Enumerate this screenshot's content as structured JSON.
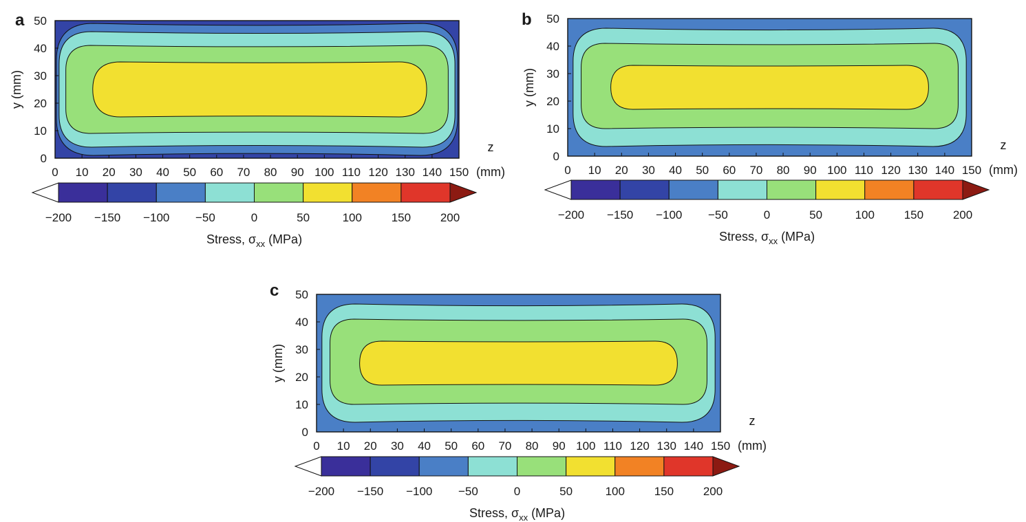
{
  "chart_data": [
    {
      "panel_label": "a",
      "type": "contour",
      "xlabel": "z",
      "xunit": "(mm)",
      "ylabel": "y (mm)",
      "xlim": [
        0,
        150
      ],
      "ylim": [
        0,
        50
      ],
      "xticks": [
        "0",
        "10",
        "20",
        "30",
        "40",
        "50",
        "60",
        "70",
        "80",
        "90",
        "100",
        "110",
        "120",
        "130",
        "140",
        "150"
      ],
      "yticks": [
        "0",
        "10",
        "20",
        "30",
        "40",
        "50"
      ],
      "contour_regions": [
        {
          "band": "-150 to -100",
          "color": "#3344a6",
          "x": [
            0,
            150
          ],
          "y": [
            0,
            50
          ]
        },
        {
          "band": "-100 to -50",
          "color": "#4a7fc6",
          "x": [
            0.5,
            149.5
          ],
          "y": [
            1,
            49
          ]
        },
        {
          "band": "-50 to 0",
          "color": "#8de0d4",
          "x": [
            1.5,
            148.5
          ],
          "y": [
            4,
            46
          ]
        },
        {
          "band": "0 to 50",
          "color": "#98e07a",
          "x": [
            4,
            146
          ],
          "y": [
            9,
            41
          ]
        },
        {
          "band": "50 to 100",
          "color": "#f2e030",
          "x": [
            14,
            138
          ],
          "y": [
            15,
            35
          ]
        }
      ],
      "colorbar": {
        "label_prefix": "Stress, σ",
        "label_sub": "xx",
        "label_suffix": " (MPa)",
        "ticks": [
          "−200",
          "−150",
          "−100",
          "−50",
          "0",
          "50",
          "100",
          "150",
          "200"
        ],
        "colors": [
          "#3a2f9a",
          "#3344a6",
          "#4a7fc6",
          "#8de0d4",
          "#98e07a",
          "#f2e030",
          "#f28224",
          "#e0362a"
        ],
        "under_color": "#ffffff",
        "over_color": "#8c1a12"
      }
    },
    {
      "panel_label": "b",
      "type": "contour",
      "xlabel": "z",
      "xunit": "(mm)",
      "ylabel": "y (mm)",
      "xlim": [
        0,
        150
      ],
      "ylim": [
        0,
        50
      ],
      "xticks": [
        "0",
        "10",
        "20",
        "30",
        "40",
        "50",
        "60",
        "70",
        "80",
        "90",
        "100",
        "110",
        "120",
        "130",
        "140",
        "150"
      ],
      "yticks": [
        "0",
        "10",
        "20",
        "30",
        "40",
        "50"
      ],
      "contour_regions": [
        {
          "band": "-100 to -50",
          "color": "#4a7fc6",
          "x": [
            0,
            150
          ],
          "y": [
            0,
            50
          ]
        },
        {
          "band": "-50 to 0",
          "color": "#8de0d4",
          "x": [
            2,
            148
          ],
          "y": [
            3.5,
            46.5
          ]
        },
        {
          "band": "0 to 50",
          "color": "#98e07a",
          "x": [
            5,
            145
          ],
          "y": [
            10,
            41
          ]
        },
        {
          "band": "50 to 100",
          "color": "#f2e030",
          "x": [
            16,
            134
          ],
          "y": [
            17,
            33
          ]
        }
      ],
      "colorbar": {
        "label_prefix": "Stress, σ",
        "label_sub": "xx",
        "label_suffix": " (MPa)",
        "ticks": [
          "−200",
          "−150",
          "−100",
          "−50",
          "0",
          "50",
          "100",
          "150",
          "200"
        ],
        "colors": [
          "#3a2f9a",
          "#3344a6",
          "#4a7fc6",
          "#8de0d4",
          "#98e07a",
          "#f2e030",
          "#f28224",
          "#e0362a"
        ],
        "under_color": "#ffffff",
        "over_color": "#8c1a12"
      }
    },
    {
      "panel_label": "c",
      "type": "contour",
      "xlabel": "z",
      "xunit": "(mm)",
      "ylabel": "y (mm)",
      "xlim": [
        0,
        150
      ],
      "ylim": [
        0,
        50
      ],
      "xticks": [
        "0",
        "10",
        "20",
        "30",
        "40",
        "50",
        "60",
        "70",
        "80",
        "90",
        "100",
        "110",
        "120",
        "130",
        "140",
        "150"
      ],
      "yticks": [
        "0",
        "10",
        "20",
        "30",
        "40",
        "50"
      ],
      "contour_regions": [
        {
          "band": "-100 to -50",
          "color": "#4a7fc6",
          "x": [
            0,
            150
          ],
          "y": [
            0,
            50
          ]
        },
        {
          "band": "-50 to 0",
          "color": "#8de0d4",
          "x": [
            2,
            148
          ],
          "y": [
            3.5,
            46.5
          ]
        },
        {
          "band": "0 to 50",
          "color": "#98e07a",
          "x": [
            5,
            145
          ],
          "y": [
            10,
            41
          ]
        },
        {
          "band": "50 to 100",
          "color": "#f2e030",
          "x": [
            16,
            134
          ],
          "y": [
            17,
            33
          ]
        }
      ],
      "colorbar": {
        "label_prefix": "Stress, σ",
        "label_sub": "xx",
        "label_suffix": " (MPa)",
        "ticks": [
          "−200",
          "−150",
          "−100",
          "−50",
          "0",
          "50",
          "100",
          "150",
          "200"
        ],
        "colors": [
          "#3a2f9a",
          "#3344a6",
          "#4a7fc6",
          "#8de0d4",
          "#98e07a",
          "#f2e030",
          "#f28224",
          "#e0362a"
        ],
        "under_color": "#ffffff",
        "over_color": "#8c1a12"
      }
    }
  ]
}
